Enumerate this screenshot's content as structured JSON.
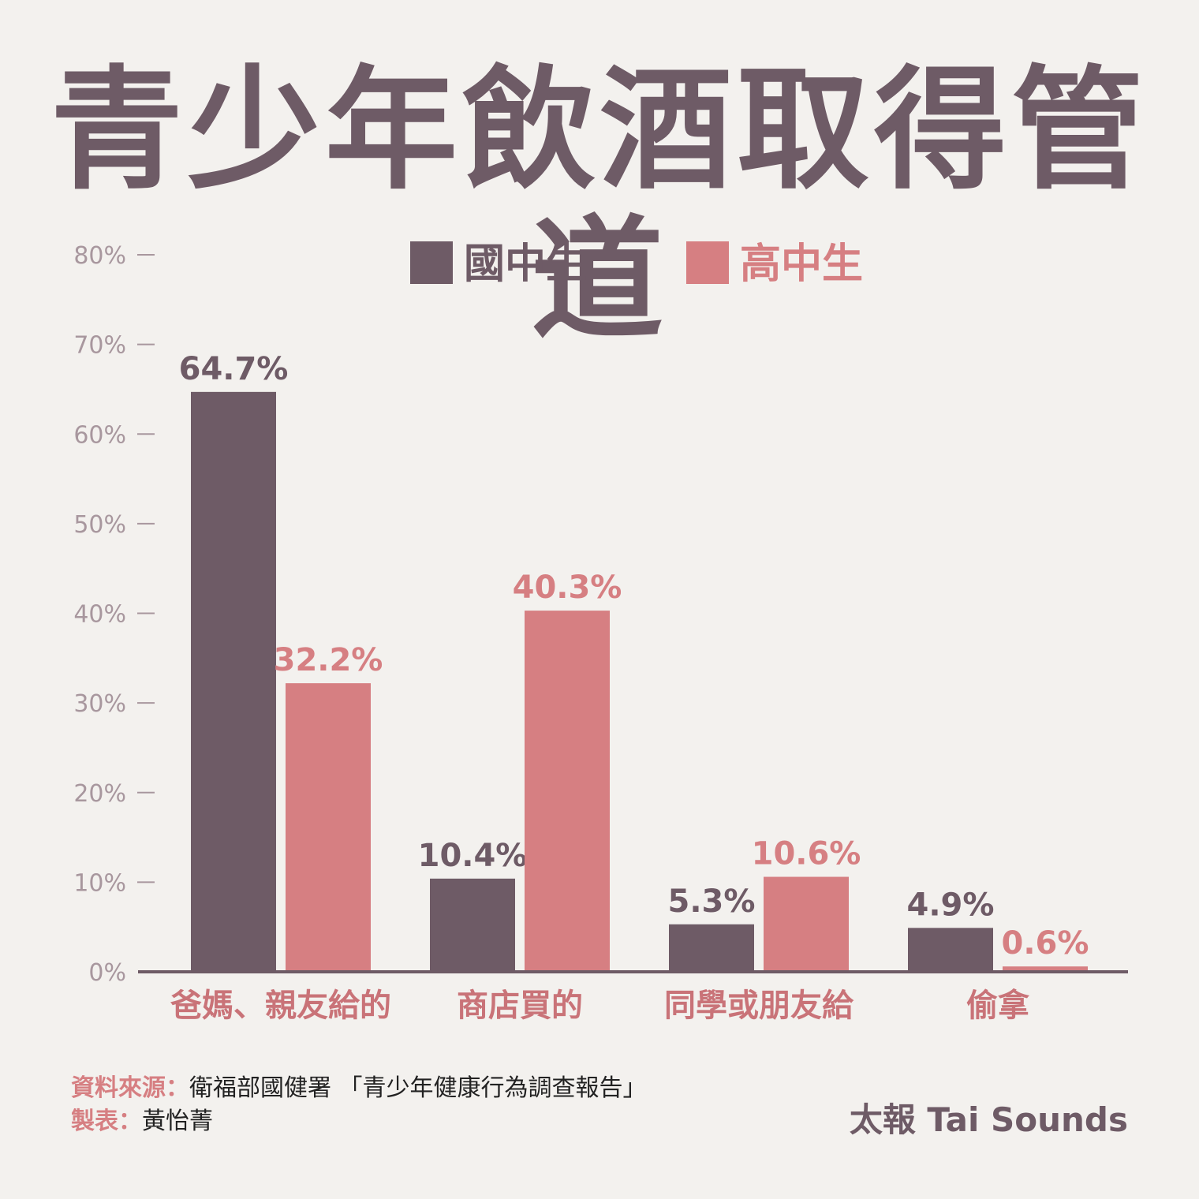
{
  "chart_data": {
    "type": "bar",
    "title": "青少年飲酒取得管道",
    "categories": [
      "爸媽、親友給的",
      "商店買的",
      "同學或朋友給",
      "偷拿"
    ],
    "series": [
      {
        "name": "國中生",
        "color": "#6e5b66",
        "values": [
          64.7,
          10.4,
          5.3,
          4.9
        ],
        "labels": [
          "64.7%",
          "10.4%",
          "5.3%",
          "4.9%"
        ]
      },
      {
        "name": "高中生",
        "color": "#d67f82",
        "values": [
          32.2,
          40.3,
          10.6,
          0.6
        ],
        "labels": [
          "32.2%",
          "40.3%",
          "10.6%",
          "0.6%"
        ]
      }
    ],
    "ylim": [
      0,
      80
    ],
    "yticks": [
      0,
      10,
      20,
      30,
      40,
      50,
      60,
      70,
      80
    ],
    "ytick_labels": [
      "0%",
      "10%",
      "20%",
      "30%",
      "40%",
      "50%",
      "60%",
      "70%",
      "80%"
    ],
    "legend_position": "top-center",
    "grid": false,
    "category_color": "#c97378",
    "axis_color": "#6e5b66",
    "tick_color": "#a8979e"
  },
  "footer": {
    "source_label": "資料來源：",
    "source_text": "衛福部國健署 「青少年健康行為調查報告」",
    "maker_label": "製表：",
    "maker_text": "黃怡菁",
    "brand": "太報 Tai Sounds"
  }
}
